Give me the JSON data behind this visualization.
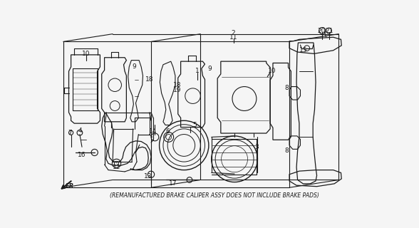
{
  "footnote": "(REMANUFACTURED BRAKE CALIPER ASSY DOES NOT INCLUDE BRAKE PADS)",
  "bg_color": "#f5f5f5",
  "line_color": "#1a1a1a",
  "fig_width": 5.88,
  "fig_height": 3.2,
  "dpi": 100,
  "footnote_fontsize": 5.5,
  "label_fontsize": 6.5
}
